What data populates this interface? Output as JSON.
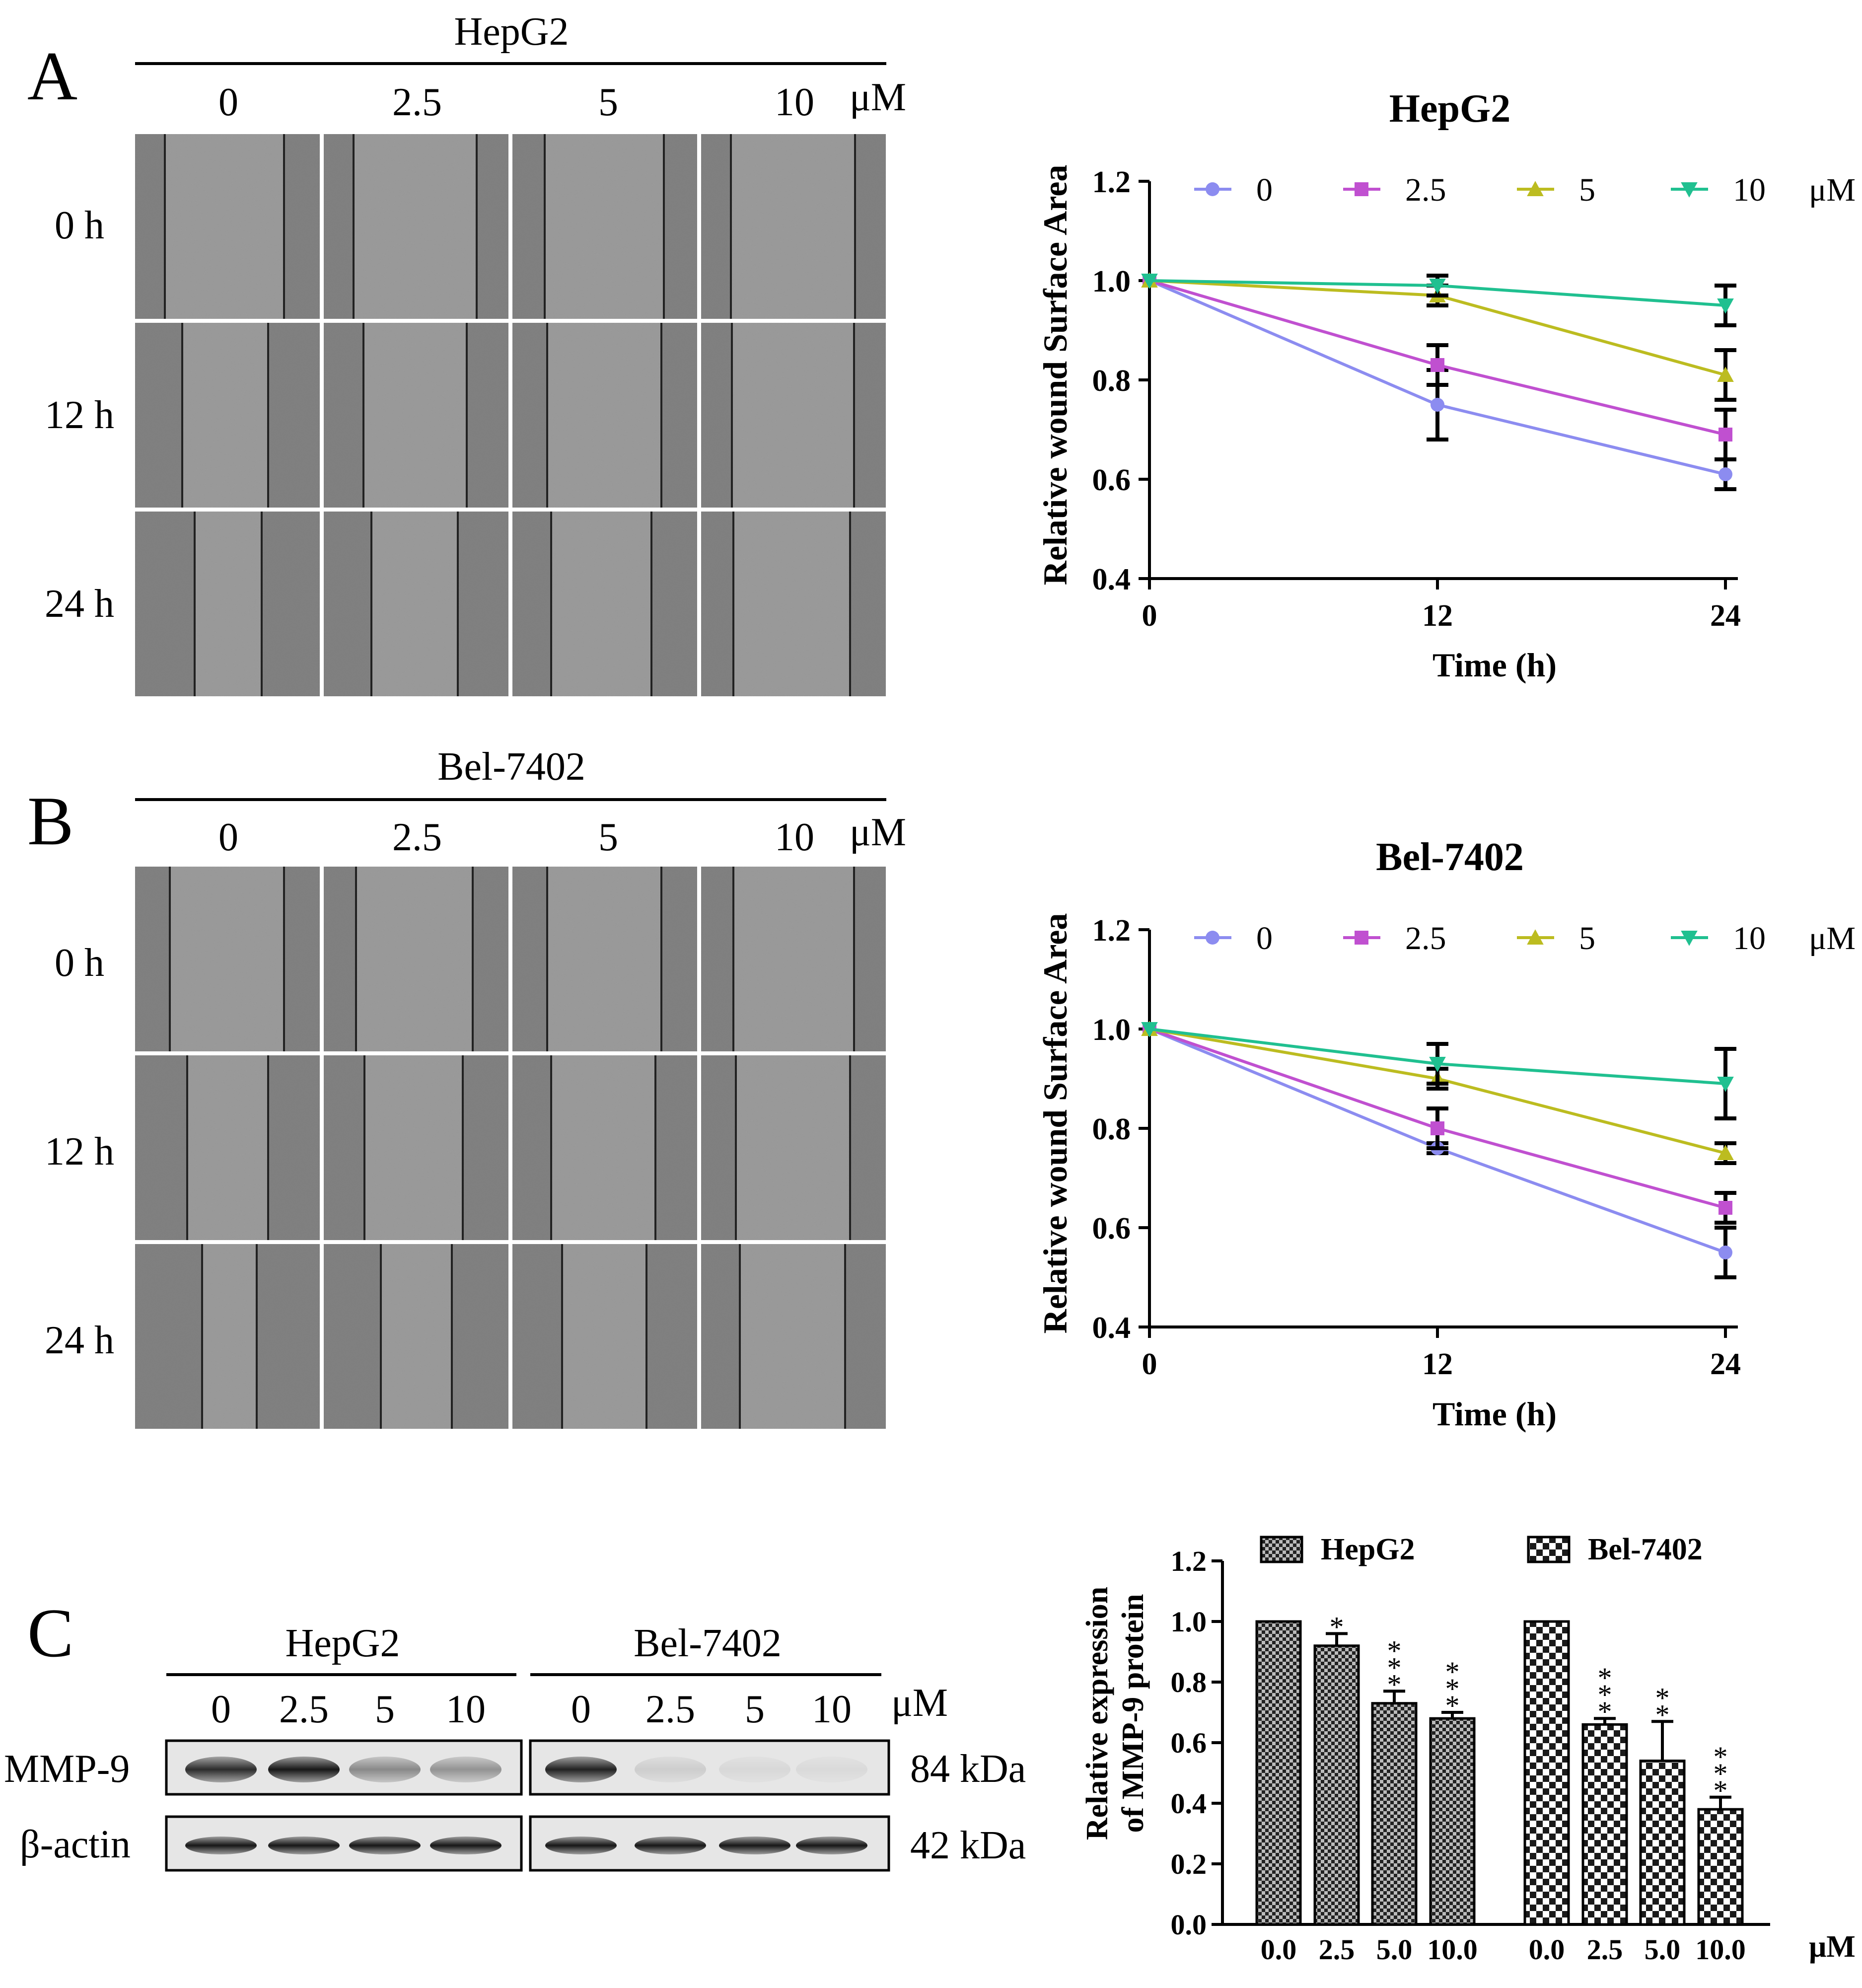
{
  "panels": {
    "A": {
      "letter": "A",
      "cell_line": "HepG2",
      "concentrations": [
        "0",
        "2.5",
        "5",
        "10"
      ],
      "unit": "μM",
      "times": [
        "0 h",
        "12 h",
        "24 h"
      ]
    },
    "B": {
      "letter": "B",
      "cell_line": "Bel-7402",
      "concentrations": [
        "0",
        "2.5",
        "5",
        "10"
      ],
      "unit": "μM",
      "times": [
        "0 h",
        "12 h",
        "24 h"
      ]
    },
    "C": {
      "letter": "C",
      "groups": [
        "HepG2",
        "Bel-7402"
      ],
      "lanes": [
        "0",
        "2.5",
        "5",
        "10"
      ],
      "unit": "μM",
      "proteins": [
        {
          "name": "MMP-9",
          "size": "84 kDa",
          "intensity_hepg2": [
            0.9,
            1.0,
            0.45,
            0.4
          ],
          "intensity_bel": [
            0.95,
            0.12,
            0.07,
            0.06
          ]
        },
        {
          "name": "β-actin",
          "size": "42 kDa",
          "intensity_hepg2": [
            1.0,
            1.0,
            1.0,
            1.0
          ],
          "intensity_bel": [
            1.0,
            1.0,
            1.0,
            1.0
          ]
        }
      ]
    }
  },
  "chart_data": [
    {
      "type": "line",
      "title": "HepG2",
      "xlabel": "Time (h)",
      "ylabel": "Relative wound Surface Area",
      "x": [
        0,
        12,
        24
      ],
      "x_ticks": [
        "0",
        "12",
        "24"
      ],
      "ylim": [
        0.4,
        1.2
      ],
      "y_ticks": [
        "0.4",
        "0.6",
        "0.8",
        "1.0",
        "1.2"
      ],
      "legend_unit": "μM",
      "series": [
        {
          "name": "0",
          "values": [
            1.0,
            0.75,
            0.61
          ],
          "errors": [
            0,
            0.07,
            0.03
          ],
          "color": "#8c8cf0",
          "marker": "circle"
        },
        {
          "name": "2.5",
          "values": [
            1.0,
            0.83,
            0.69
          ],
          "errors": [
            0,
            0.04,
            0.05
          ],
          "color": "#c050d0",
          "marker": "square"
        },
        {
          "name": "5",
          "values": [
            1.0,
            0.97,
            0.81
          ],
          "errors": [
            0,
            0.02,
            0.05
          ],
          "color": "#bcbc20",
          "marker": "triangle-up"
        },
        {
          "name": "10",
          "values": [
            1.0,
            0.99,
            0.95
          ],
          "errors": [
            0,
            0.02,
            0.04
          ],
          "color": "#20c090",
          "marker": "triangle-down"
        }
      ]
    },
    {
      "type": "line",
      "title": "Bel-7402",
      "xlabel": "Time (h)",
      "ylabel": "Relative wound Surface Area",
      "x": [
        0,
        12,
        24
      ],
      "x_ticks": [
        "0",
        "12",
        "24"
      ],
      "ylim": [
        0.4,
        1.2
      ],
      "y_ticks": [
        "0.4",
        "0.6",
        "0.8",
        "1.0",
        "1.2"
      ],
      "legend_unit": "μM",
      "series": [
        {
          "name": "0",
          "values": [
            1.0,
            0.76,
            0.55
          ],
          "errors": [
            0,
            0.01,
            0.05
          ],
          "color": "#8c8cf0",
          "marker": "circle"
        },
        {
          "name": "2.5",
          "values": [
            1.0,
            0.8,
            0.64
          ],
          "errors": [
            0,
            0.04,
            0.03
          ],
          "color": "#c050d0",
          "marker": "square"
        },
        {
          "name": "5",
          "values": [
            1.0,
            0.9,
            0.75
          ],
          "errors": [
            0,
            0.02,
            0.02
          ],
          "color": "#bcbc20",
          "marker": "triangle-up"
        },
        {
          "name": "10",
          "values": [
            1.0,
            0.93,
            0.89
          ],
          "errors": [
            0,
            0.04,
            0.07
          ],
          "color": "#20c090",
          "marker": "triangle-down"
        }
      ]
    },
    {
      "type": "bar",
      "title": "",
      "xlabel": "",
      "ylabel_lines": [
        "Relative expression",
        "of MMP-9 protein"
      ],
      "ylim": [
        0.0,
        1.2
      ],
      "y_ticks": [
        "0.0",
        "0.2",
        "0.4",
        "0.6",
        "0.8",
        "1.0",
        "1.2"
      ],
      "unit": "μM",
      "groups": [
        {
          "name": "HepG2",
          "pattern": "dense",
          "categories": [
            "0.0",
            "2.5",
            "5.0",
            "10.0"
          ],
          "values": [
            1.0,
            0.92,
            0.73,
            0.68
          ],
          "errors": [
            0,
            0.04,
            0.04,
            0.02
          ],
          "significance": [
            "",
            "*",
            "***",
            "***"
          ]
        },
        {
          "name": "Bel-7402",
          "pattern": "check",
          "categories": [
            "0.0",
            "2.5",
            "5.0",
            "10.0"
          ],
          "values": [
            1.0,
            0.66,
            0.54,
            0.38
          ],
          "errors": [
            0,
            0.02,
            0.13,
            0.04
          ],
          "significance": [
            "",
            "***",
            "**",
            "***"
          ]
        }
      ]
    }
  ]
}
